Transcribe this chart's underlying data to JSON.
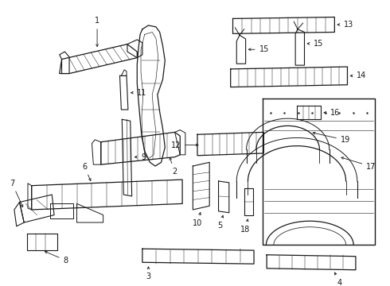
{
  "bg_color": "#ffffff",
  "fig_width": 4.9,
  "fig_height": 3.6,
  "dpi": 100,
  "line_color": "#1a1a1a",
  "label_fontsize": 7.0
}
